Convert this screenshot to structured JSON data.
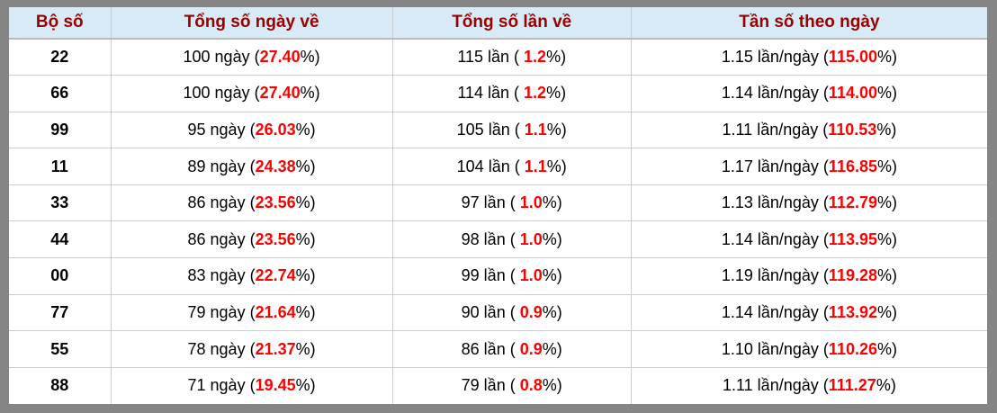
{
  "colors": {
    "header_bg": "#d7eaf6",
    "header_text": "#990000",
    "highlight_red": "#ff0000",
    "frame_gray": "#858585",
    "grid_line": "#cccccc"
  },
  "table": {
    "headers": [
      "Bộ số",
      "Tổng số ngày về",
      "Tổng số lần về",
      "Tần số theo ngày"
    ],
    "rows": [
      {
        "pair": "22",
        "days": {
          "pre": "100 ngày (",
          "red": "27.40",
          "post": "%)"
        },
        "times": {
          "pre": "115 lần ( ",
          "red": "1.2",
          "post": "%)"
        },
        "freq": {
          "pre": "1.15 lần/ngày (",
          "red": "115.00",
          "post": "%)"
        }
      },
      {
        "pair": "66",
        "days": {
          "pre": "100 ngày (",
          "red": "27.40",
          "post": "%)"
        },
        "times": {
          "pre": "114 lần ( ",
          "red": "1.2",
          "post": "%)"
        },
        "freq": {
          "pre": "1.14 lần/ngày (",
          "red": "114.00",
          "post": "%)"
        }
      },
      {
        "pair": "99",
        "days": {
          "pre": "95 ngày (",
          "red": "26.03",
          "post": "%)"
        },
        "times": {
          "pre": "105 lần ( ",
          "red": "1.1",
          "post": "%)"
        },
        "freq": {
          "pre": "1.11 lần/ngày (",
          "red": "110.53",
          "post": "%)"
        }
      },
      {
        "pair": "11",
        "days": {
          "pre": "89 ngày (",
          "red": "24.38",
          "post": "%)"
        },
        "times": {
          "pre": "104 lần ( ",
          "red": "1.1",
          "post": "%)"
        },
        "freq": {
          "pre": "1.17 lần/ngày (",
          "red": "116.85",
          "post": "%)"
        }
      },
      {
        "pair": "33",
        "days": {
          "pre": "86 ngày (",
          "red": "23.56",
          "post": "%)"
        },
        "times": {
          "pre": "97 lần ( ",
          "red": "1.0",
          "post": "%)"
        },
        "freq": {
          "pre": "1.13 lần/ngày (",
          "red": "112.79",
          "post": "%)"
        }
      },
      {
        "pair": "44",
        "days": {
          "pre": "86 ngày (",
          "red": "23.56",
          "post": "%)"
        },
        "times": {
          "pre": "98 lần ( ",
          "red": "1.0",
          "post": "%)"
        },
        "freq": {
          "pre": "1.14 lần/ngày (",
          "red": "113.95",
          "post": "%)"
        }
      },
      {
        "pair": "00",
        "days": {
          "pre": "83 ngày (",
          "red": "22.74",
          "post": "%)"
        },
        "times": {
          "pre": "99 lần ( ",
          "red": "1.0",
          "post": "%)"
        },
        "freq": {
          "pre": "1.19 lần/ngày (",
          "red": "119.28",
          "post": "%)"
        }
      },
      {
        "pair": "77",
        "days": {
          "pre": "79 ngày (",
          "red": "21.64",
          "post": "%)"
        },
        "times": {
          "pre": "90 lần ( ",
          "red": "0.9",
          "post": "%)"
        },
        "freq": {
          "pre": "1.14 lần/ngày (",
          "red": "113.92",
          "post": "%)"
        }
      },
      {
        "pair": "55",
        "days": {
          "pre": "78 ngày (",
          "red": "21.37",
          "post": "%)"
        },
        "times": {
          "pre": "86 lần ( ",
          "red": "0.9",
          "post": "%)"
        },
        "freq": {
          "pre": "1.10 lần/ngày (",
          "red": "110.26",
          "post": "%)"
        }
      },
      {
        "pair": "88",
        "days": {
          "pre": "71 ngày (",
          "red": "19.45",
          "post": "%)"
        },
        "times": {
          "pre": "79 lần ( ",
          "red": "0.8",
          "post": "%)"
        },
        "freq": {
          "pre": "1.11 lần/ngày (",
          "red": "111.27",
          "post": "%)"
        }
      }
    ]
  }
}
